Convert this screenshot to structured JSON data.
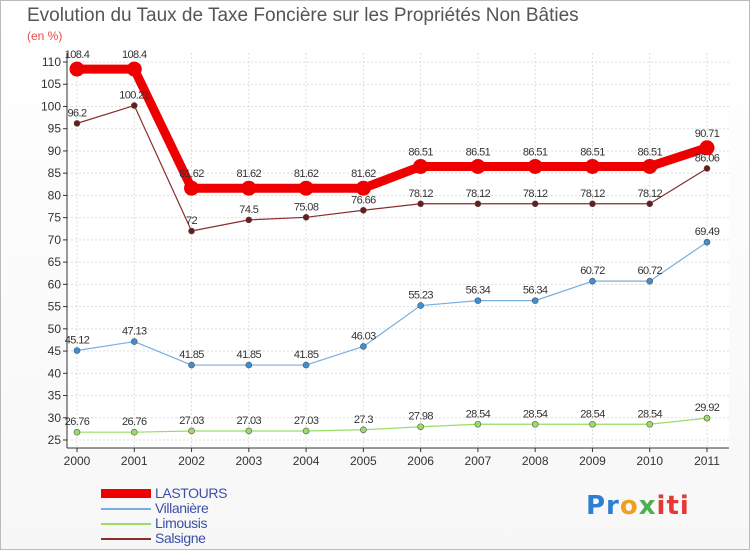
{
  "title": "Evolution du Taux de Taxe Foncière sur les Propriétés Non Bâties",
  "unit_label": "(en %)",
  "logo": {
    "p1": "Pr",
    "p2": "o",
    "p3": "x",
    "p4": "iti"
  },
  "chart_data": {
    "type": "line",
    "title": "Evolution du Taux de Taxe Foncière sur les Propriétés Non Bâties",
    "ylabel": "(en %)",
    "xlabel": "",
    "ylim": [
      25,
      110
    ],
    "yticks": [
      25,
      30,
      35,
      40,
      45,
      50,
      55,
      60,
      65,
      70,
      75,
      80,
      85,
      90,
      95,
      100,
      105,
      110
    ],
    "grid": true,
    "categories": [
      "2000",
      "2001",
      "2002",
      "2003",
      "2004",
      "2005",
      "2006",
      "2007",
      "2008",
      "2009",
      "2010",
      "2011"
    ],
    "series": [
      {
        "name": "Limousis",
        "color": "#99dd66",
        "marker": "#99dd66",
        "values": [
          26.76,
          26.76,
          27.03,
          27.03,
          27.03,
          27.3,
          27.98,
          28.54,
          28.54,
          28.54,
          28.54,
          29.92
        ],
        "labels": [
          "26.76",
          "26.76",
          "27.03",
          "27.03",
          "27.03",
          "27.3",
          "27.98",
          "28.54",
          "28.54",
          "28.54",
          "28.54",
          "29.92"
        ]
      },
      {
        "name": "Villanière",
        "color": "#7aaee0",
        "marker": "#3d8fd6",
        "values": [
          45.12,
          47.13,
          41.85,
          41.85,
          41.85,
          46.03,
          55.23,
          56.34,
          56.34,
          60.72,
          60.72,
          69.49
        ],
        "labels": [
          "45.12",
          "47.13",
          "41.85",
          "41.85",
          "41.85",
          "46.03",
          "55.23",
          "56.34",
          "56.34",
          "60.72",
          "60.72",
          "69.49"
        ]
      },
      {
        "name": "Salsigne",
        "color": "#8b2d2d",
        "marker": "#6b1a1a",
        "values": [
          96.2,
          100.21,
          72,
          74.5,
          75.08,
          76.66,
          78.12,
          78.12,
          78.12,
          78.12,
          78.12,
          86.06
        ],
        "labels": [
          "96.2",
          "100.21",
          "72",
          "74.5",
          "75.08",
          "76.66",
          "78.12",
          "78.12",
          "78.12",
          "78.12",
          "78.12",
          "86.06"
        ]
      },
      {
        "name": "LASTOURS",
        "color": "#ee0000",
        "marker": "#ee0000",
        "values": [
          108.4,
          108.4,
          81.62,
          81.62,
          81.62,
          81.62,
          86.51,
          86.51,
          86.51,
          86.51,
          86.51,
          90.71
        ],
        "labels": [
          "108.4",
          "108.4",
          "81.62",
          "81.62",
          "81.62",
          "81.62",
          "86.51",
          "86.51",
          "86.51",
          "86.51",
          "86.51",
          "90.71"
        ]
      }
    ],
    "legend": [
      {
        "name": "LASTOURS",
        "color": "#ee0000"
      },
      {
        "name": "Villanière",
        "color": "#7aaee0"
      },
      {
        "name": "Limousis",
        "color": "#99dd66"
      },
      {
        "name": "Salsigne",
        "color": "#8b2d2d"
      }
    ],
    "legend_position": "bottom-left"
  }
}
